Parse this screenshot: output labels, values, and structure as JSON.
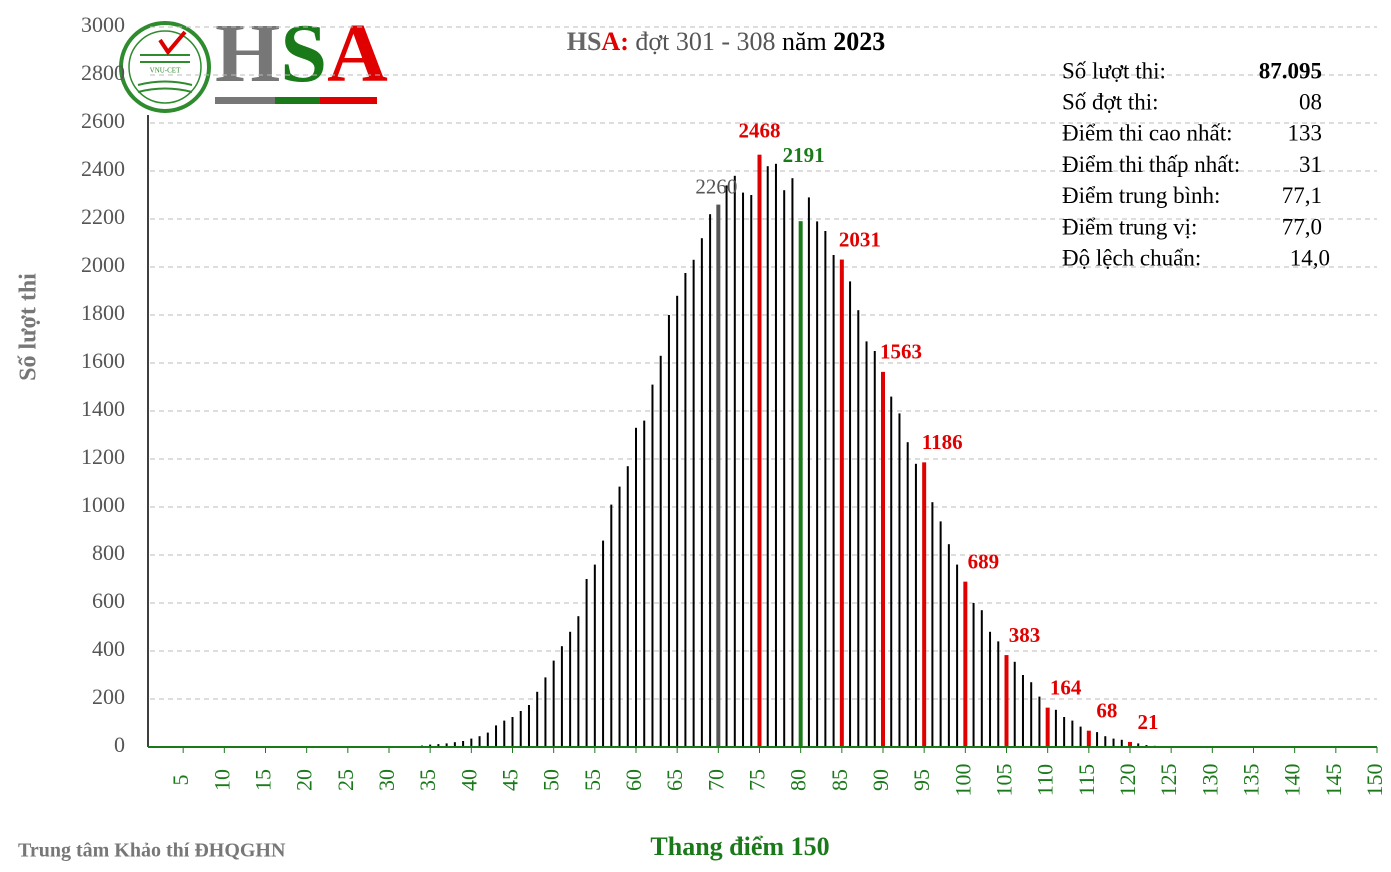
{
  "chart_data": {
    "type": "bar",
    "title_parts": [
      {
        "text": "HS",
        "color": "#666666",
        "bold": true
      },
      {
        "text": "A:",
        "color": "#e00000",
        "bold": true
      },
      {
        "text": " đợt 301 - 308 ",
        "color": "#555555",
        "bold": false
      },
      {
        "text": "năm ",
        "color": "#000000",
        "bold": false
      },
      {
        "text": "2023",
        "color": "#000000",
        "bold": true
      }
    ],
    "logo": {
      "letters": [
        {
          "text": "H",
          "color": "#777777"
        },
        {
          "text": "S",
          "color": "#1a7a1a"
        },
        {
          "text": "A",
          "color": "#e00000"
        }
      ],
      "badge": "VNU-CET"
    },
    "y_label": "Số lượt thi",
    "x_label": "Thang điểm 150",
    "footer": "Trung tâm Khảo thí ĐHQGHN",
    "stats": [
      [
        "Số lượt thi:",
        "87.095"
      ],
      [
        "Số đợt thi:",
        "08"
      ],
      [
        "Điểm thi cao nhất:",
        "133"
      ],
      [
        "Điểm thi thấp nhất:",
        "31"
      ],
      [
        "Điểm trung bình:",
        "77,1"
      ],
      [
        "Điểm trung vị:",
        "77,0"
      ],
      [
        "Độ lệch chuẩn:",
        "14,0"
      ]
    ],
    "x": [
      31,
      32,
      33,
      34,
      35,
      36,
      37,
      38,
      39,
      40,
      41,
      42,
      43,
      44,
      45,
      46,
      47,
      48,
      49,
      50,
      51,
      52,
      53,
      54,
      55,
      56,
      57,
      58,
      59,
      60,
      61,
      62,
      63,
      64,
      65,
      66,
      67,
      68,
      69,
      70,
      71,
      72,
      73,
      74,
      75,
      76,
      77,
      78,
      79,
      80,
      81,
      82,
      83,
      84,
      85,
      86,
      87,
      88,
      89,
      90,
      91,
      92,
      93,
      94,
      95,
      96,
      97,
      98,
      99,
      100,
      101,
      102,
      103,
      104,
      105,
      106,
      107,
      108,
      109,
      110,
      111,
      112,
      113,
      114,
      115,
      116,
      117,
      118,
      119,
      120,
      121,
      122,
      123,
      124,
      125,
      126,
      127,
      128,
      129,
      130,
      131,
      132,
      133
    ],
    "values": [
      2,
      3,
      4,
      6,
      10,
      12,
      15,
      20,
      25,
      35,
      45,
      60,
      90,
      110,
      125,
      150,
      175,
      230,
      290,
      360,
      420,
      480,
      545,
      700,
      760,
      860,
      1010,
      1085,
      1170,
      1330,
      1360,
      1510,
      1630,
      1800,
      1880,
      1975,
      2030,
      2120,
      2220,
      2260,
      2340,
      2380,
      2310,
      2300,
      2468,
      2420,
      2430,
      2320,
      2370,
      2191,
      2290,
      2190,
      2150,
      2050,
      2031,
      1940,
      1820,
      1690,
      1650,
      1563,
      1460,
      1390,
      1270,
      1180,
      1186,
      1020,
      940,
      845,
      760,
      689,
      600,
      570,
      480,
      440,
      383,
      355,
      300,
      270,
      210,
      164,
      155,
      125,
      110,
      85,
      68,
      62,
      45,
      35,
      30,
      21,
      15,
      8,
      5,
      4,
      3,
      3,
      2,
      2,
      1,
      1,
      1,
      1,
      1
    ],
    "color": "#000000",
    "annotations": [
      {
        "x": 70,
        "label": "2260",
        "color": "#555555",
        "bold": false
      },
      {
        "x": 75,
        "label": "2468",
        "color": "#e00000",
        "bold": true
      },
      {
        "x": 80,
        "label": "2191",
        "color": "#1a7a1a",
        "bold": true
      },
      {
        "x": 85,
        "label": "2031",
        "color": "#e00000",
        "bold": true
      },
      {
        "x": 90,
        "label": "1563",
        "color": "#e00000",
        "bold": true
      },
      {
        "x": 95,
        "label": "1186",
        "color": "#e00000",
        "bold": true
      },
      {
        "x": 100,
        "label": "689",
        "color": "#e00000",
        "bold": true
      },
      {
        "x": 105,
        "label": "383",
        "color": "#e00000",
        "bold": true
      },
      {
        "x": 110,
        "label": "164",
        "color": "#e00000",
        "bold": true
      },
      {
        "x": 115,
        "label": "68",
        "color": "#e00000",
        "bold": true
      },
      {
        "x": 120,
        "label": "21",
        "color": "#e00000",
        "bold": true
      }
    ],
    "xlim": [
      0,
      150
    ],
    "xticks": [
      5,
      10,
      15,
      20,
      25,
      30,
      35,
      40,
      45,
      50,
      55,
      60,
      65,
      70,
      75,
      80,
      85,
      90,
      95,
      100,
      105,
      110,
      115,
      120,
      125,
      130,
      135,
      140,
      145,
      150
    ],
    "ylim": [
      0,
      3000
    ],
    "yticks": [
      0,
      200,
      400,
      600,
      800,
      1000,
      1200,
      1400,
      1600,
      1800,
      2000,
      2200,
      2400,
      2600,
      2800,
      3000
    ],
    "grid": true
  }
}
